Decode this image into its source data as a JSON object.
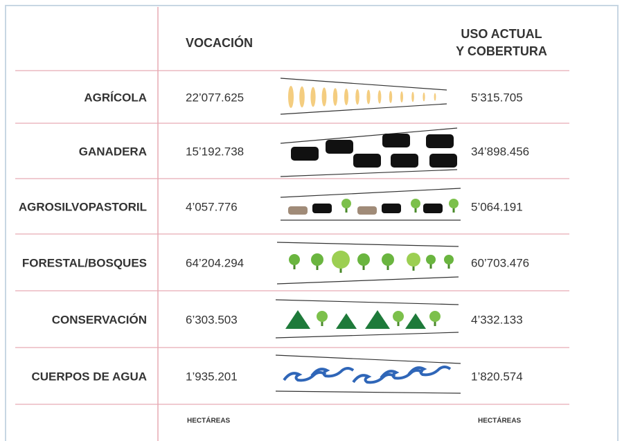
{
  "header": {
    "vocacion": "VOCACIÓN",
    "uso": [
      "USO ACTUAL",
      "Y COBERTURA"
    ]
  },
  "rows": [
    {
      "label": "AGRÍCOLA",
      "vocacion": "22’077.625",
      "uso": "5’315.705"
    },
    {
      "label": "GANADERA",
      "vocacion": "15’192.738",
      "uso": "34’898.456"
    },
    {
      "label": "AGROSILVOPASTORIL",
      "vocacion": "4’057.776",
      "uso": "5’064.191"
    },
    {
      "label": "FORESTAL/BOSQUES",
      "vocacion": "64’204.294",
      "uso": "60’703.476"
    },
    {
      "label": "CONSERVACIÓN",
      "vocacion": "6’303.503",
      "uso": "4’332.133"
    },
    {
      "label": "CUERPOS DE AGUA",
      "vocacion": "1’935.201",
      "uso": "1’820.574"
    }
  ],
  "footer": [
    "HECTÁREAS",
    "HECTÁREAS"
  ]
}
